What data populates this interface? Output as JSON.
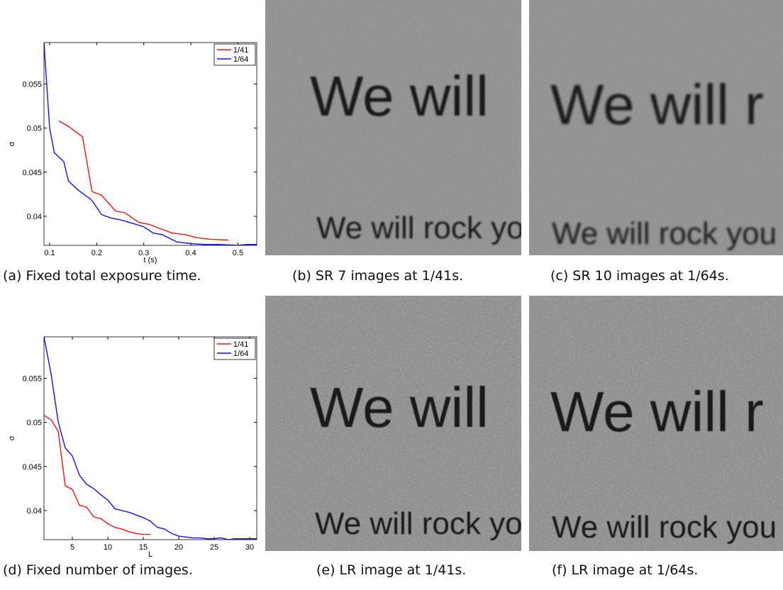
{
  "chart_data": [
    {
      "type": "line",
      "xlabel": "t (s)",
      "ylabel": "σ",
      "xlim": [
        0.088,
        0.54
      ],
      "ylim": [
        0.0367,
        0.0597
      ],
      "xticks": [
        0.1,
        0.2,
        0.3,
        0.4,
        0.5
      ],
      "yticks": [
        0.04,
        0.045,
        0.05,
        0.055
      ],
      "legend": "upper right",
      "caption": "(a) Fixed total exposure time.",
      "series": [
        {
          "name": "1/41",
          "color": "#e8141a",
          "x": [
            0.12,
            0.14,
            0.17,
            0.19,
            0.21,
            0.24,
            0.26,
            0.29,
            0.31,
            0.34,
            0.36,
            0.39,
            0.41,
            0.44,
            0.48
          ],
          "values": [
            0.0508,
            0.0502,
            0.049,
            0.0428,
            0.0424,
            0.0406,
            0.0404,
            0.0393,
            0.0391,
            0.0385,
            0.0381,
            0.0379,
            0.0376,
            0.0374,
            0.0373
          ]
        },
        {
          "name": "1/64",
          "color": "#1414e0",
          "x": [
            0.088,
            0.1,
            0.11,
            0.13,
            0.14,
            0.16,
            0.19,
            0.21,
            0.23,
            0.25,
            0.27,
            0.3,
            0.32,
            0.34,
            0.37,
            0.4,
            0.43,
            0.46,
            0.5,
            0.52,
            0.54
          ],
          "values": [
            0.0597,
            0.05,
            0.0472,
            0.0462,
            0.044,
            0.043,
            0.0418,
            0.0402,
            0.0398,
            0.0396,
            0.0393,
            0.0388,
            0.0381,
            0.0379,
            0.0371,
            0.0369,
            0.0368,
            0.0368,
            0.0367,
            0.0368,
            0.0368
          ]
        }
      ]
    },
    {
      "type": "line",
      "xlabel": "L",
      "ylabel": "σ",
      "xlim": [
        1,
        31
      ],
      "ylim": [
        0.0367,
        0.0597
      ],
      "xticks": [
        5,
        10,
        15,
        20,
        25,
        30
      ],
      "yticks": [
        0.04,
        0.045,
        0.05,
        0.055
      ],
      "legend": "upper right",
      "caption": "(d) Fixed number of images.",
      "series": [
        {
          "name": "1/41",
          "color": "#e8141a",
          "x": [
            1,
            2,
            3,
            4,
            5,
            6,
            7,
            8,
            9,
            10,
            11,
            12,
            13,
            14,
            15,
            16
          ],
          "values": [
            0.0508,
            0.0503,
            0.049,
            0.0428,
            0.0424,
            0.0406,
            0.0404,
            0.0393,
            0.0391,
            0.0385,
            0.0381,
            0.0379,
            0.0376,
            0.0374,
            0.0373,
            0.0373
          ]
        },
        {
          "name": "1/64",
          "color": "#1414e0",
          "x": [
            1,
            2,
            3,
            4,
            5,
            6,
            7,
            8,
            9,
            10,
            11,
            12,
            13,
            14,
            15,
            16,
            17,
            18,
            19,
            20,
            21,
            22,
            23,
            24,
            25,
            26,
            27,
            28,
            29,
            30,
            31
          ],
          "values": [
            0.0597,
            0.0555,
            0.0501,
            0.0471,
            0.0462,
            0.044,
            0.043,
            0.0425,
            0.0418,
            0.0412,
            0.0402,
            0.04,
            0.0398,
            0.0395,
            0.0392,
            0.0388,
            0.0381,
            0.0379,
            0.0374,
            0.0371,
            0.037,
            0.0369,
            0.0369,
            0.0368,
            0.0368,
            0.0369,
            0.0367,
            0.0368,
            0.0368,
            0.0368,
            0.0368
          ]
        }
      ]
    }
  ],
  "images": [
    {
      "caption": "(b) SR 7 images at 1/41s.",
      "lines": [
        "We will",
        "We will rock yo"
      ]
    },
    {
      "caption": "(c) SR 10 images at 1/64s.",
      "lines": [
        "We will r",
        "We will rock you"
      ]
    },
    {
      "caption": "(e) LR image at 1/41s.",
      "lines": [
        "We will",
        "We will rock yo"
      ]
    },
    {
      "caption": "(f) LR image at 1/64s.",
      "lines": [
        "We will r",
        "We will rock you"
      ]
    }
  ]
}
